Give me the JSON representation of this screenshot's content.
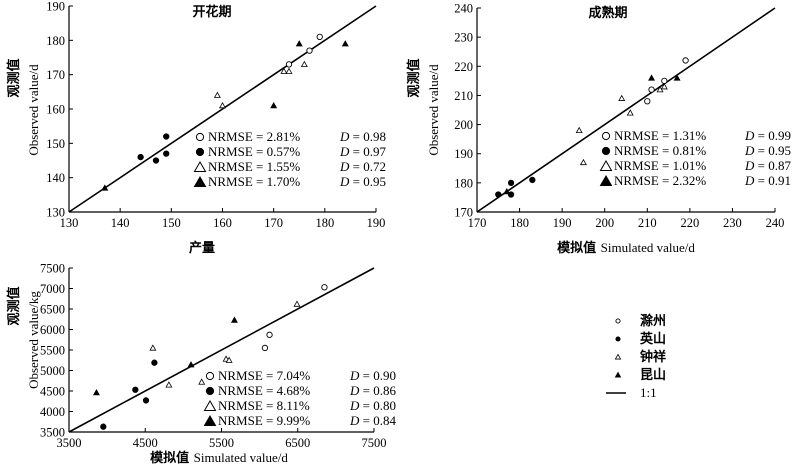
{
  "chart_data": [
    {
      "type": "scatter",
      "title": "开花期",
      "ylabel_cn": "观测值",
      "ylabel_en": "Observed value/d",
      "xlabel_cn": "",
      "xlabel_en": "",
      "xlim": [
        130,
        190
      ],
      "ylim": [
        130,
        190
      ],
      "xticks": [
        "130",
        "140",
        "150",
        "160",
        "170",
        "180",
        "190"
      ],
      "yticks": [
        "130",
        "140",
        "150",
        "160",
        "170",
        "180",
        "190"
      ],
      "stats": [
        {
          "nrmse": "NRMSE = 2.81%",
          "d": "= 0.98"
        },
        {
          "nrmse": "NRMSE = 0.57%",
          "d": "= 0.97"
        },
        {
          "nrmse": "NRMSE = 1.55%",
          "d": "= 0.72"
        },
        {
          "nrmse": "NRMSE = 1.70%",
          "d": "= 0.95"
        }
      ],
      "series": [
        {
          "marker": "circle-open",
          "points": [
            [
              173,
              173
            ],
            [
              177,
              177
            ],
            [
              179,
              181
            ]
          ]
        },
        {
          "marker": "circle-filled",
          "points": [
            [
              144,
              146
            ],
            [
              147,
              145
            ],
            [
              149,
              152
            ],
            [
              149,
              147
            ]
          ]
        },
        {
          "marker": "triangle-open",
          "points": [
            [
              159,
              164
            ],
            [
              160,
              161
            ],
            [
              172,
              171
            ],
            [
              173,
              171
            ],
            [
              176,
              173
            ]
          ]
        },
        {
          "marker": "triangle-filled",
          "points": [
            [
              137,
              137
            ],
            [
              170,
              161
            ],
            [
              175,
              179
            ],
            [
              184,
              179
            ]
          ]
        }
      ]
    },
    {
      "type": "scatter",
      "title": "成熟期",
      "ylabel_cn": "观测值",
      "ylabel_en": "Observed value/d",
      "xlabel_cn": "模拟值",
      "xlabel_en": "Simulated value/d",
      "xlim": [
        170,
        240
      ],
      "ylim": [
        170,
        240
      ],
      "xticks": [
        "170",
        "180",
        "190",
        "200",
        "210",
        "220",
        "230",
        "240"
      ],
      "yticks": [
        "170",
        "180",
        "190",
        "200",
        "210",
        "220",
        "230",
        "240"
      ],
      "stats": [
        {
          "nrmse": "NRMSE = 1.31%",
          "d": "= 0.99"
        },
        {
          "nrmse": "NRMSE = 0.81%",
          "d": "= 0.95"
        },
        {
          "nrmse": "NRMSE = 1.01%",
          "d": "= 0.87"
        },
        {
          "nrmse": "NRMSE = 2.32%",
          "d": "= 0.91"
        }
      ],
      "series": [
        {
          "marker": "circle-open",
          "points": [
            [
              210,
              208
            ],
            [
              211,
              212
            ],
            [
              214,
              215
            ],
            [
              219,
              222
            ]
          ]
        },
        {
          "marker": "circle-filled",
          "points": [
            [
              175,
              176
            ],
            [
              178,
              176
            ],
            [
              178,
              180
            ],
            [
              183,
              181
            ]
          ]
        },
        {
          "marker": "triangle-open",
          "points": [
            [
              194,
              198
            ],
            [
              195,
              187
            ],
            [
              204,
              209
            ],
            [
              206,
              204
            ],
            [
              213,
              212
            ],
            [
              214,
              213
            ]
          ]
        },
        {
          "marker": "triangle-filled",
          "points": [
            [
              177,
              177
            ],
            [
              211,
              216
            ],
            [
              217,
              216
            ]
          ]
        }
      ]
    },
    {
      "type": "scatter",
      "title": "产量",
      "ylabel_cn": "观测值",
      "ylabel_en": "Observed value/kg",
      "xlabel_cn": "模拟值",
      "xlabel_en": "Simulated value/d",
      "xlim": [
        3500,
        7500
      ],
      "ylim": [
        3500,
        7500
      ],
      "xticks": [
        "3500",
        "4500",
        "5500",
        "6500",
        "7500"
      ],
      "yticks": [
        "3500",
        "4000",
        "4500",
        "5000",
        "5500",
        "6000",
        "6500",
        "7000",
        "7500"
      ],
      "stats": [
        {
          "nrmse": "NRMSE = 7.04%",
          "d": "= 0.90"
        },
        {
          "nrmse": "NRMSE = 4.68%",
          "d": "= 0.86"
        },
        {
          "nrmse": "NRMSE = 8.11%",
          "d": "= 0.80"
        },
        {
          "nrmse": "NRMSE = 9.99%",
          "d": "= 0.84"
        }
      ],
      "series": [
        {
          "marker": "circle-open",
          "points": [
            [
              6070,
              5550
            ],
            [
              6130,
              5870
            ],
            [
              6850,
              7030
            ]
          ]
        },
        {
          "marker": "circle-filled",
          "points": [
            [
              3950,
              3630
            ],
            [
              4370,
              4530
            ],
            [
              4510,
              4270
            ],
            [
              4620,
              5190
            ]
          ]
        },
        {
          "marker": "triangle-open",
          "points": [
            [
              4600,
              5550
            ],
            [
              4810,
              4650
            ],
            [
              5240,
              4720
            ],
            [
              5560,
              5280
            ],
            [
              5600,
              5250
            ],
            [
              6490,
              6620
            ]
          ]
        },
        {
          "marker": "triangle-filled",
          "points": [
            [
              3860,
              4460
            ],
            [
              5100,
              5140
            ],
            [
              5670,
              6230
            ]
          ]
        }
      ]
    }
  ],
  "legend": {
    "items": [
      {
        "marker": "circle-open",
        "label": "滁州"
      },
      {
        "marker": "circle-filled",
        "label": "英山"
      },
      {
        "marker": "triangle-small-open",
        "label": "钟祥"
      },
      {
        "marker": "triangle-small-filled",
        "label": "昆山"
      },
      {
        "marker": "line",
        "label": "1:1"
      }
    ]
  }
}
